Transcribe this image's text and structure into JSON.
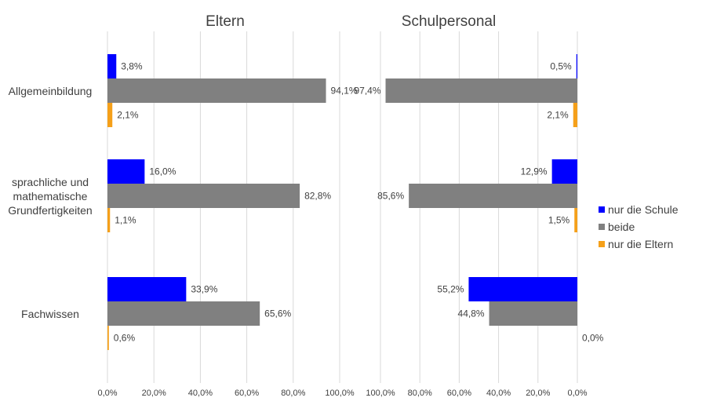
{
  "chart_data": {
    "type": "bar",
    "orientation": "horizontal",
    "categories": [
      "Allgemeinbildung",
      "sprachliche und mathematische Grundfertigkeiten",
      "Fachwissen"
    ],
    "category_lines": [
      [
        "Allgemeinbildung"
      ],
      [
        "sprachliche und",
        "mathematische",
        "Grundfertigkeiten"
      ],
      [
        "Fachwissen"
      ]
    ],
    "series_names": [
      "nur die Schule",
      "beide",
      "nur die Eltern"
    ],
    "colors": [
      "#0000ff",
      "#808080",
      "#f5a01a"
    ],
    "legend_position": "right",
    "grid": true,
    "panels": [
      {
        "title": "Eltern",
        "direction": "left-to-right",
        "xlim": [
          0,
          100
        ],
        "ticks": [
          "0,0%",
          "20,0%",
          "40,0%",
          "60,0%",
          "80,0%",
          "100,0%"
        ],
        "series": [
          {
            "name": "nur die Schule",
            "values": [
              3.8,
              16.0,
              33.9
            ],
            "labels": [
              "3,8%",
              "16,0%",
              "33,9%"
            ]
          },
          {
            "name": "beide",
            "values": [
              94.1,
              82.8,
              65.6
            ],
            "labels": [
              "94,1%",
              "82,8%",
              "65,6%"
            ]
          },
          {
            "name": "nur die Eltern",
            "values": [
              2.1,
              1.1,
              0.6
            ],
            "labels": [
              "2,1%",
              "1,1%",
              "0,6%"
            ]
          }
        ]
      },
      {
        "title": "Schulpersonal",
        "direction": "right-to-left",
        "xlim": [
          0,
          100
        ],
        "ticks": [
          "100,0%",
          "80,0%",
          "60,0%",
          "40,0%",
          "20,0%",
          "0,0%"
        ],
        "series": [
          {
            "name": "nur die Schule",
            "values": [
              0.5,
              12.9,
              55.2
            ],
            "labels": [
              "0,5%",
              "12,9%",
              "55,2%"
            ]
          },
          {
            "name": "beide",
            "values": [
              97.4,
              85.6,
              44.8
            ],
            "labels": [
              "97,4%",
              "85,6%",
              "44,8%"
            ]
          },
          {
            "name": "nur die Eltern",
            "values": [
              2.1,
              1.5,
              0.0
            ],
            "labels": [
              "2,1%",
              "1,5%",
              "0,0%"
            ]
          }
        ]
      }
    ]
  }
}
